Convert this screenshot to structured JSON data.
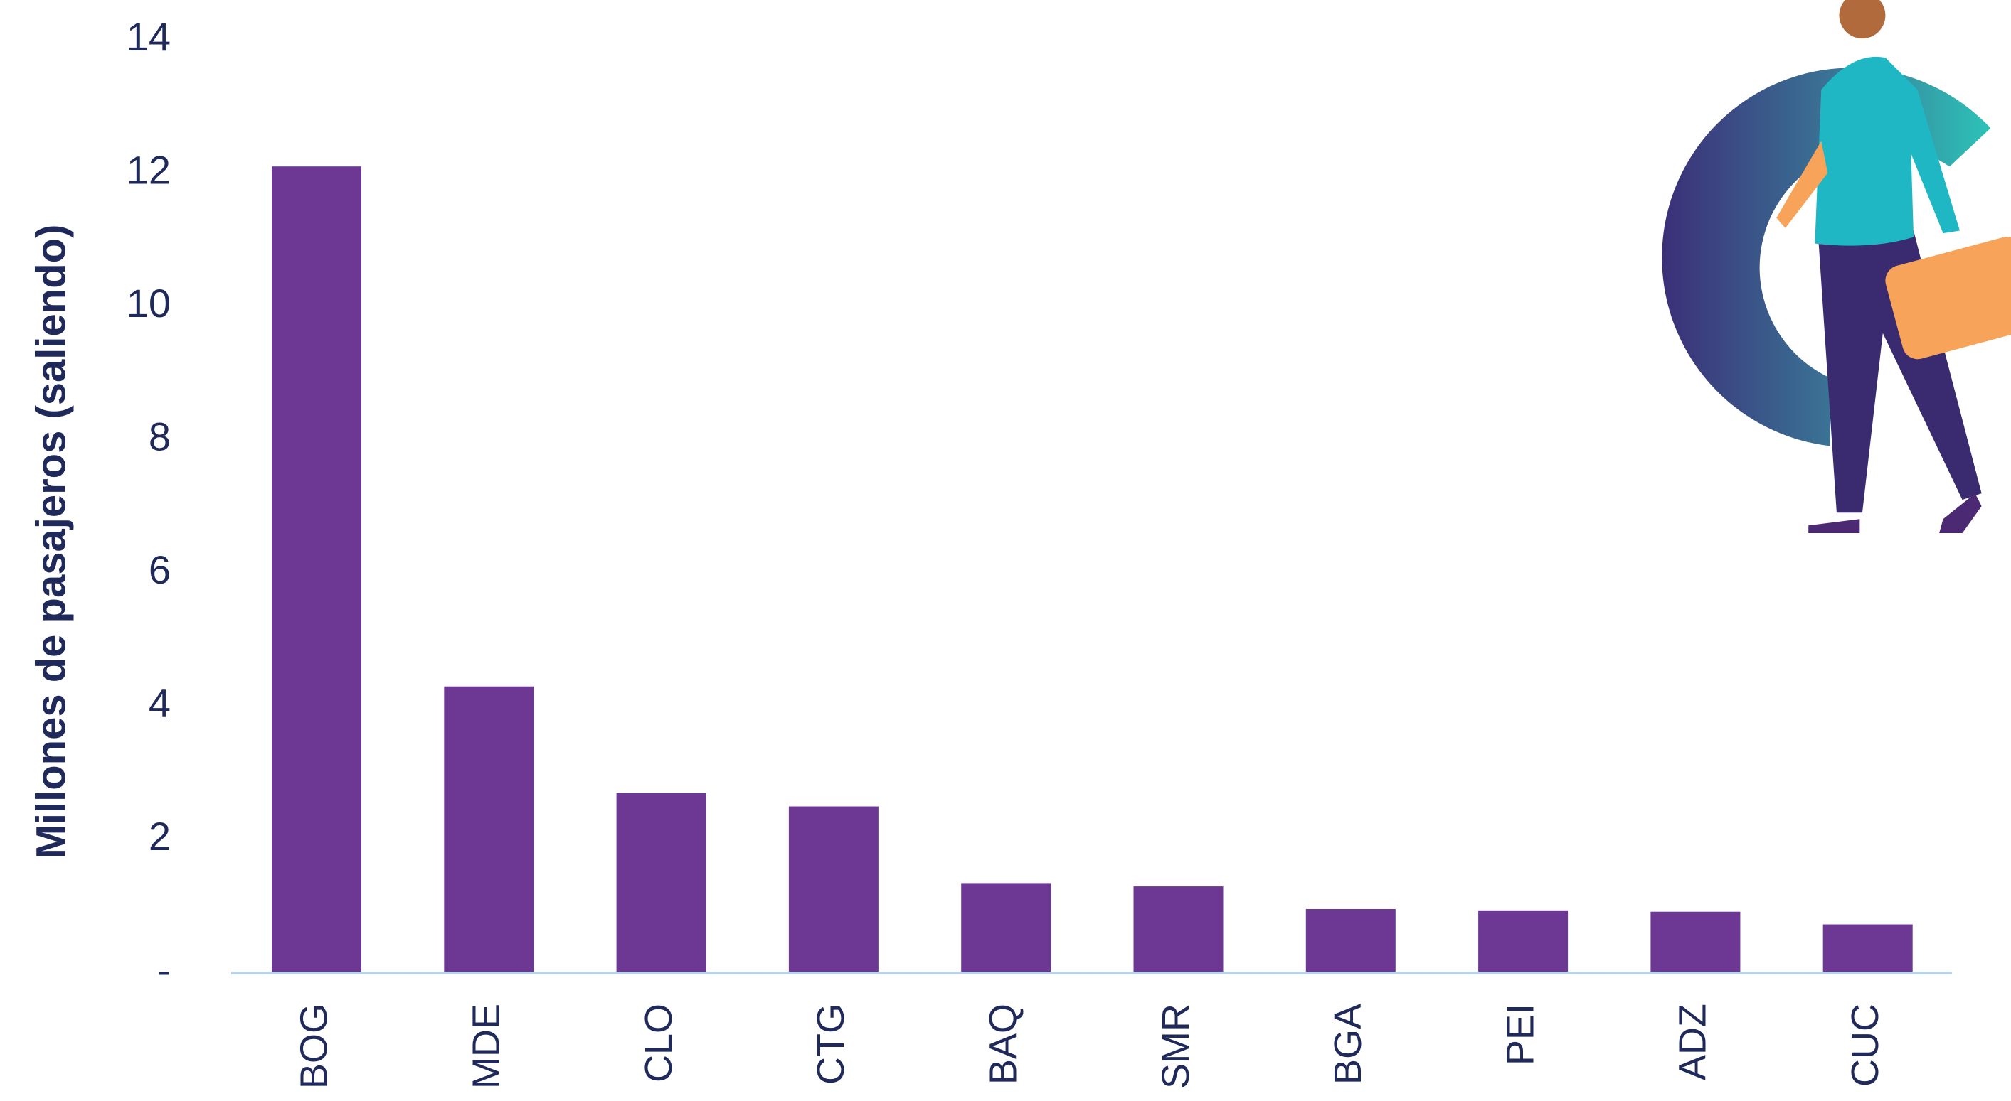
{
  "chart_data": {
    "type": "bar",
    "y_label": "Millones de pasajeros (saliendo)",
    "categories": [
      "BOG",
      "MDE",
      "CLO",
      "CTG",
      "BAQ",
      "SMR",
      "BGA",
      "PEI",
      "ADZ",
      "CUC"
    ],
    "values": [
      12.1,
      4.3,
      2.7,
      2.5,
      1.35,
      1.3,
      0.96,
      0.94,
      0.92,
      0.73
    ],
    "color": "#6d3893",
    "ylim": [
      0,
      14
    ],
    "yticks": [
      {
        "value": 0,
        "label": "-"
      },
      2,
      4,
      6,
      8,
      10,
      12,
      14
    ],
    "grid": false
  }
}
